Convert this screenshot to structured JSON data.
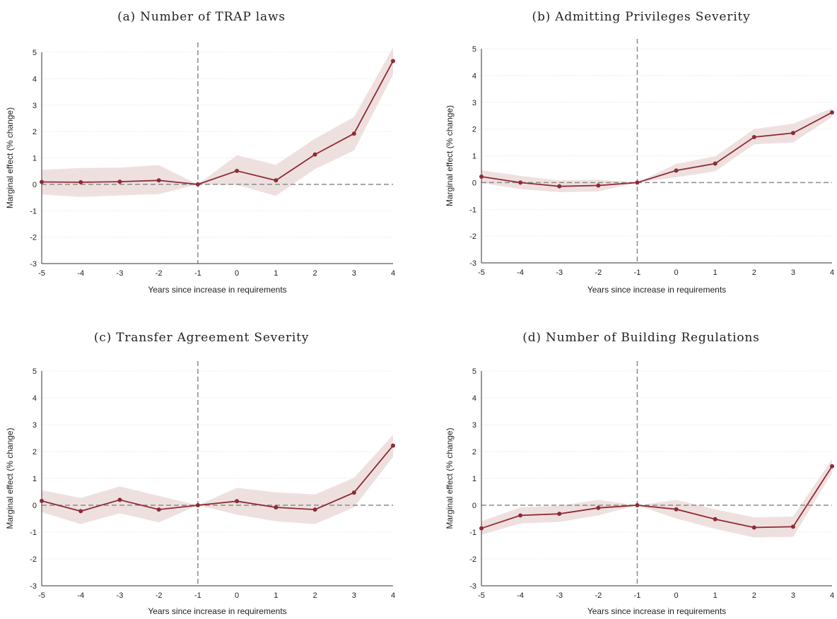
{
  "colors": {
    "series": "#8e2b35",
    "band": "#efe0e0",
    "reference": "#8a8a8a",
    "grid": "#e9e9e9",
    "background": "#ffffff"
  },
  "chart_data": [
    {
      "type": "line",
      "title": "(a) Number of TRAP laws",
      "xlabel": "Years since increase in requirements",
      "ylabel": "Marginal effect (% change)",
      "x": [
        -5,
        -4,
        -3,
        -2,
        -1,
        0,
        1,
        2,
        3,
        4
      ],
      "xlim": [
        -5,
        4
      ],
      "ylim": [
        -3,
        5
      ],
      "yticks": [
        -3,
        -2,
        -1,
        0,
        1,
        2,
        3,
        4,
        5
      ],
      "reference_lines": {
        "y": 0,
        "x": -1
      },
      "grid": true,
      "series": [
        {
          "values": [
            0.09,
            0.08,
            0.1,
            0.15,
            0.0,
            0.51,
            0.15,
            1.13,
            1.92,
            4.67
          ],
          "ci_lower": [
            -0.38,
            -0.48,
            -0.42,
            -0.37,
            0.0,
            -0.02,
            -0.44,
            0.58,
            1.28,
            4.15
          ],
          "ci_upper": [
            0.55,
            0.62,
            0.63,
            0.73,
            0.0,
            1.1,
            0.74,
            1.73,
            2.55,
            5.18
          ]
        }
      ]
    },
    {
      "type": "line",
      "title": "(b) Admitting Privileges Severity",
      "xlabel": "Years since increase in requirements",
      "ylabel": "Marginal effect (% change)",
      "x": [
        -5,
        -4,
        -3,
        -2,
        -1,
        0,
        1,
        2,
        3,
        4
      ],
      "xlim": [
        -5,
        4
      ],
      "ylim": [
        -3,
        5
      ],
      "yticks": [
        -3,
        -2,
        -1,
        0,
        1,
        2,
        3,
        4,
        5
      ],
      "reference_lines": {
        "y": 0,
        "x": -1
      },
      "grid": true,
      "series": [
        {
          "values": [
            0.22,
            0.0,
            -0.14,
            -0.11,
            0.0,
            0.45,
            0.71,
            1.7,
            1.85,
            2.62
          ],
          "ci_lower": [
            -0.02,
            -0.24,
            -0.36,
            -0.33,
            0.0,
            0.2,
            0.42,
            1.43,
            1.5,
            2.45
          ],
          "ci_upper": [
            0.46,
            0.25,
            0.08,
            0.11,
            0.0,
            0.7,
            0.98,
            2.0,
            2.2,
            2.78
          ]
        }
      ]
    },
    {
      "type": "line",
      "title": "(c) Transfer Agreement Severity",
      "xlabel": "Years since increase in requirements",
      "ylabel": "Marginal effect (% change)",
      "x": [
        -5,
        -4,
        -3,
        -2,
        -1,
        0,
        1,
        2,
        3,
        4
      ],
      "xlim": [
        -5,
        4
      ],
      "ylim": [
        -3,
        5
      ],
      "yticks": [
        -3,
        -2,
        -1,
        0,
        1,
        2,
        3,
        4,
        5
      ],
      "reference_lines": {
        "y": 0,
        "x": -1
      },
      "grid": true,
      "series": [
        {
          "values": [
            0.16,
            -0.22,
            0.2,
            -0.16,
            0.0,
            0.15,
            -0.08,
            -0.16,
            0.47,
            2.22
          ],
          "ci_lower": [
            -0.26,
            -0.7,
            -0.3,
            -0.64,
            0.0,
            -0.35,
            -0.6,
            -0.7,
            -0.08,
            1.8
          ],
          "ci_upper": [
            0.56,
            0.27,
            0.7,
            0.35,
            0.0,
            0.65,
            0.48,
            0.4,
            1.02,
            2.62
          ]
        }
      ]
    },
    {
      "type": "line",
      "title": "(d) Number of Building Regulations",
      "xlabel": "Years since increase in requirements",
      "ylabel": "Marginal effect (% change)",
      "x": [
        -5,
        -4,
        -3,
        -2,
        -1,
        0,
        1,
        2,
        3,
        4
      ],
      "xlim": [
        -5,
        4
      ],
      "ylim": [
        -3,
        5
      ],
      "yticks": [
        -3,
        -2,
        -1,
        0,
        1,
        2,
        3,
        4,
        5
      ],
      "reference_lines": {
        "y": 0,
        "x": -1
      },
      "grid": true,
      "series": [
        {
          "values": [
            -0.86,
            -0.38,
            -0.32,
            -0.1,
            0.0,
            -0.15,
            -0.52,
            -0.83,
            -0.8,
            1.45
          ],
          "ci_lower": [
            -1.1,
            -0.68,
            -0.62,
            -0.38,
            0.0,
            -0.5,
            -0.88,
            -1.2,
            -1.18,
            1.2
          ],
          "ci_upper": [
            -0.6,
            -0.08,
            -0.02,
            0.2,
            0.0,
            0.2,
            -0.15,
            -0.45,
            -0.42,
            1.72
          ]
        }
      ]
    }
  ]
}
